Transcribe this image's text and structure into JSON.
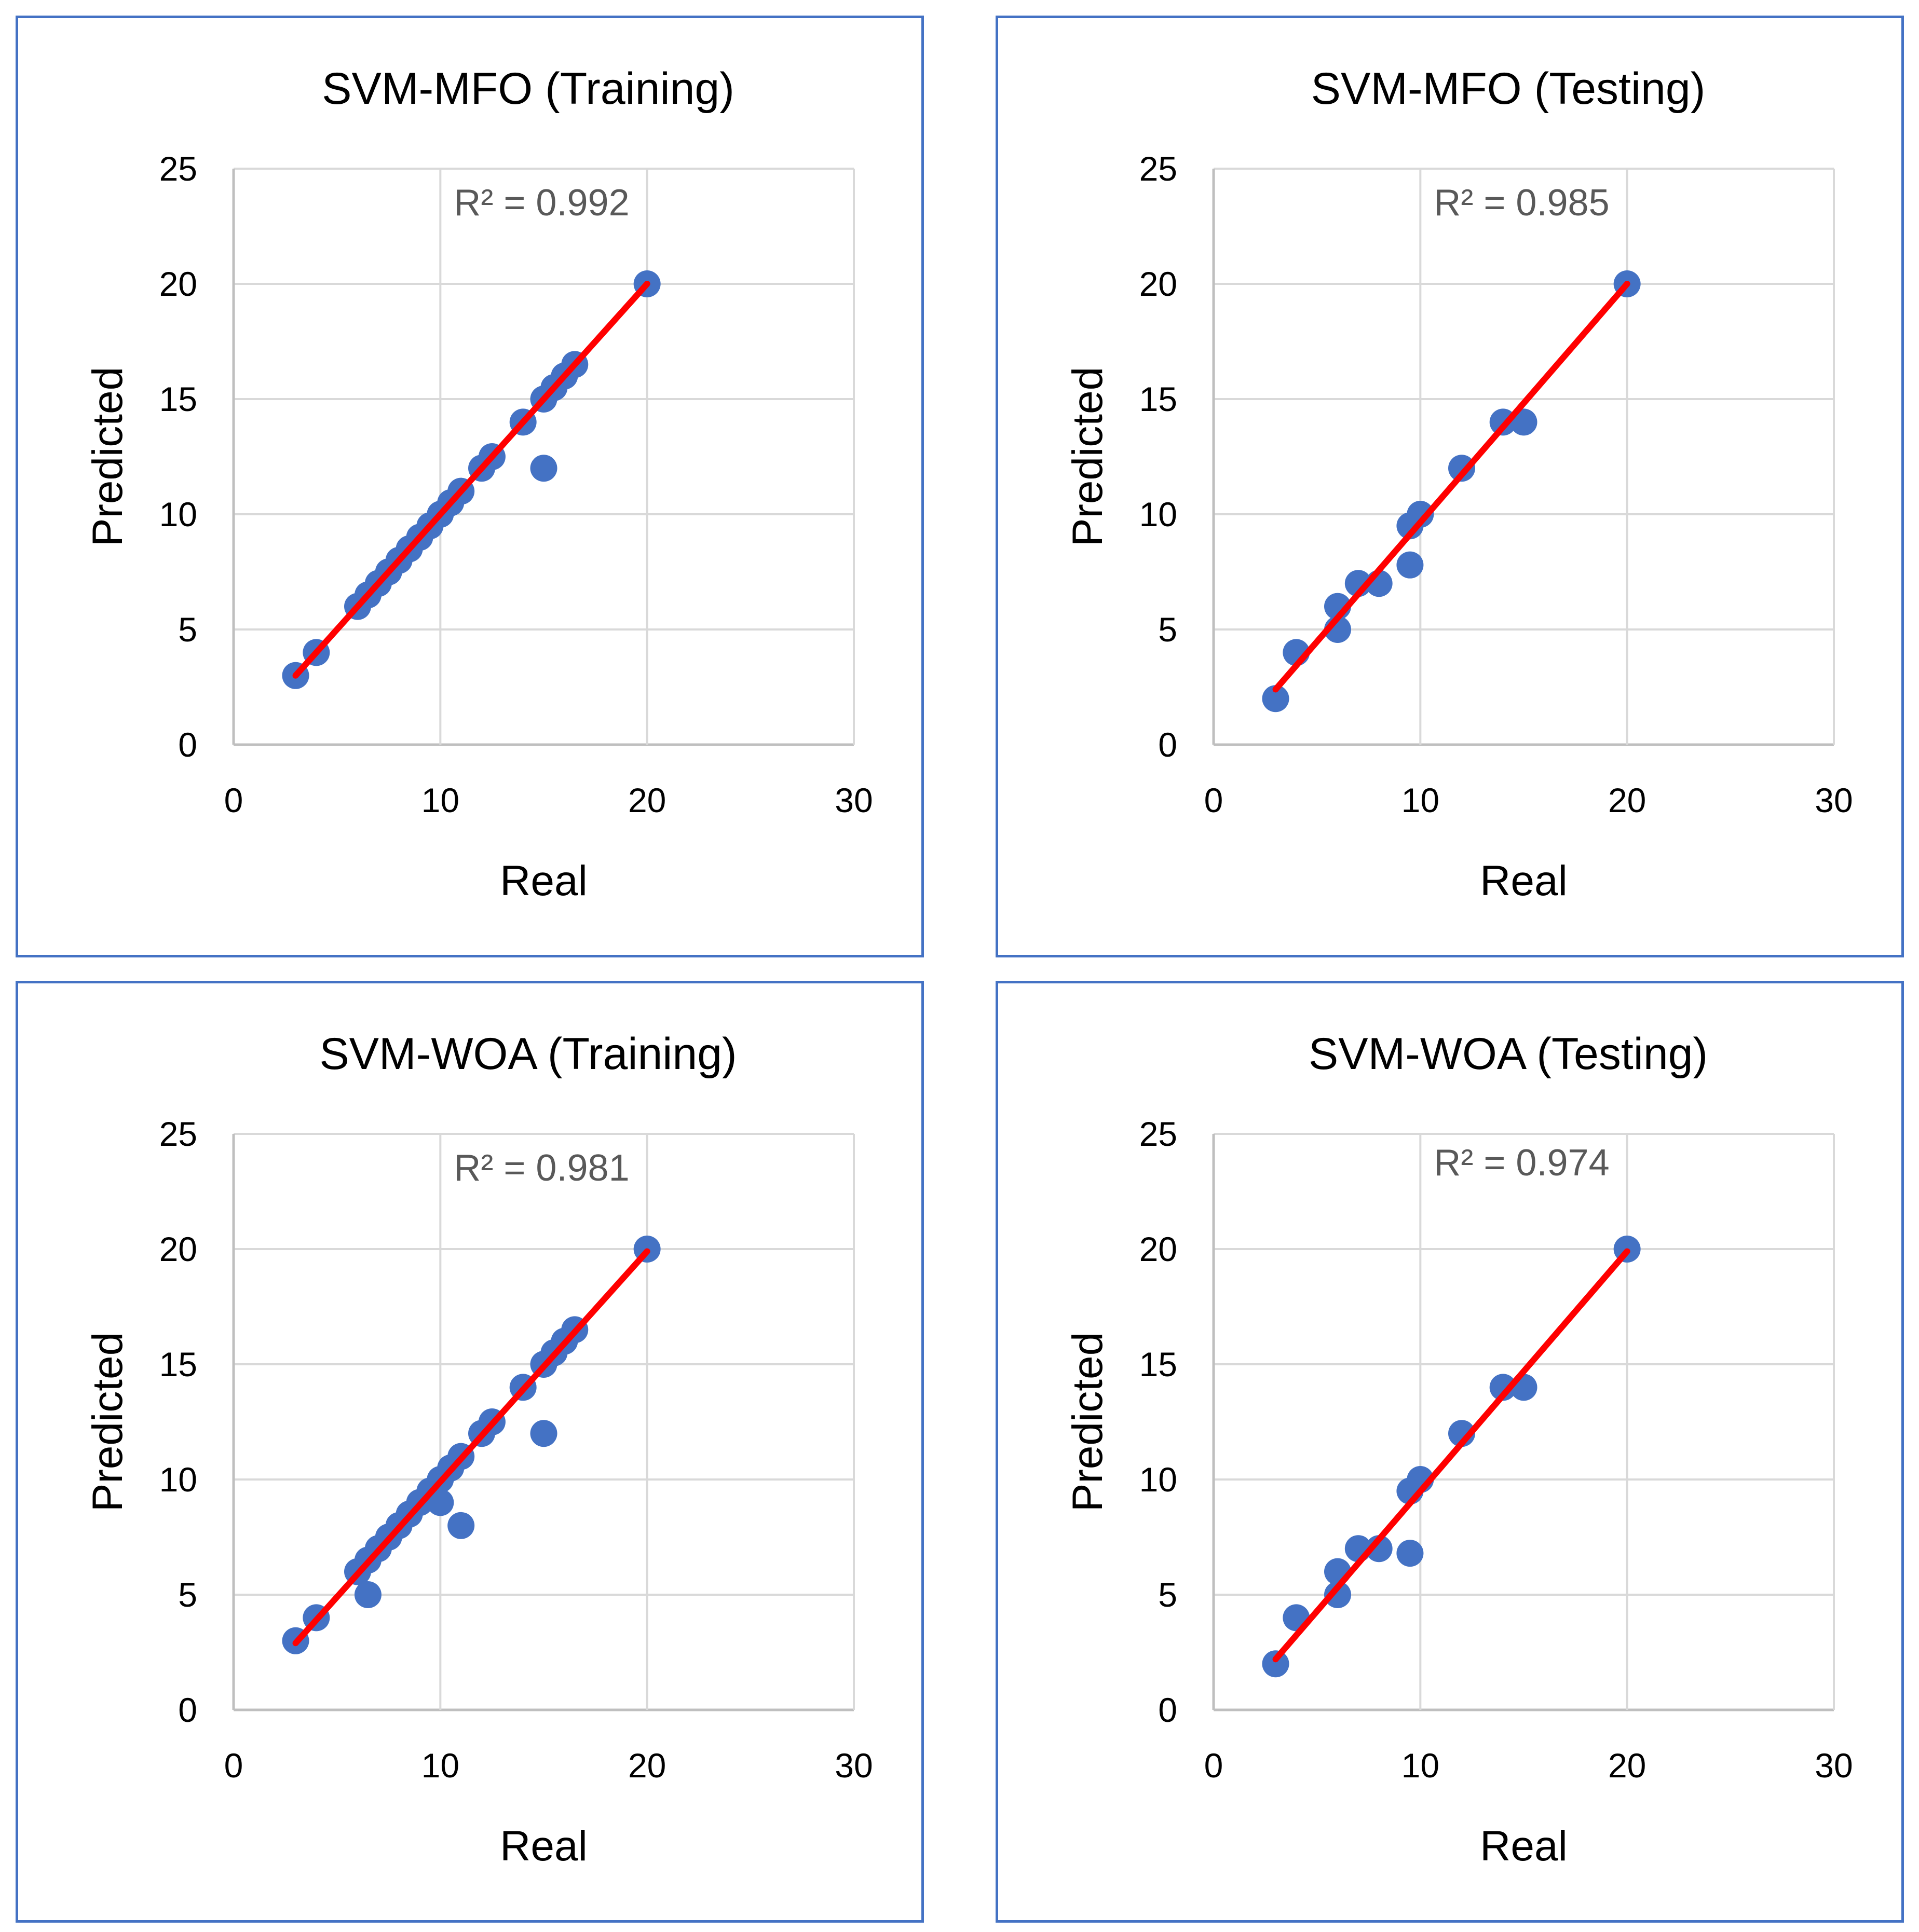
{
  "chart_data": [
    {
      "type": "scatter",
      "title": "SVM-MFO (Training)",
      "xlabel": "Real",
      "ylabel": "Predicted",
      "xlim": [
        0,
        30
      ],
      "ylim": [
        0,
        25
      ],
      "xticks": [
        "0",
        "10",
        "20",
        "30"
      ],
      "yticks": [
        "0",
        "5",
        "10",
        "15",
        "20",
        "25"
      ],
      "r2_label": "R² = 0.992",
      "trendline": {
        "x": [
          3,
          20
        ],
        "y": [
          3,
          20
        ],
        "color": "#FF0000"
      },
      "series": [
        {
          "name": "Predicted",
          "color": "#4472C4",
          "x": [
            3,
            4,
            6,
            6.5,
            7,
            7.5,
            8,
            8.5,
            9,
            9.5,
            10,
            10.5,
            11,
            12,
            12.5,
            14,
            15,
            15.5,
            16,
            16.5,
            20,
            15
          ],
          "y": [
            3,
            4,
            6,
            6.5,
            7,
            7.5,
            8,
            8.5,
            9,
            9.5,
            10,
            10.5,
            11,
            12,
            12.5,
            14,
            15,
            15.5,
            16,
            16.5,
            20,
            12
          ]
        }
      ]
    },
    {
      "type": "scatter",
      "title": "SVM-MFO (Testing)",
      "xlabel": "Real",
      "ylabel": "Predicted",
      "xlim": [
        0,
        30
      ],
      "ylim": [
        0,
        25
      ],
      "xticks": [
        "0",
        "10",
        "20",
        "30"
      ],
      "yticks": [
        "0",
        "5",
        "10",
        "15",
        "20",
        "25"
      ],
      "r2_label": "R² = 0.985",
      "trendline": {
        "x": [
          3,
          20
        ],
        "y": [
          2.4,
          20
        ],
        "color": "#FF0000"
      },
      "series": [
        {
          "name": "Predicted",
          "color": "#4472C4",
          "x": [
            3,
            4,
            6,
            6,
            7,
            8,
            9.5,
            9.5,
            10,
            12,
            14,
            15,
            20
          ],
          "y": [
            2,
            4,
            6,
            5,
            7,
            7,
            9.5,
            7.8,
            10,
            12,
            14,
            14,
            20
          ]
        }
      ]
    },
    {
      "type": "scatter",
      "title": "SVM-WOA (Training)",
      "xlabel": "Real",
      "ylabel": "Predicted",
      "xlim": [
        0,
        30
      ],
      "ylim": [
        0,
        25
      ],
      "xticks": [
        "0",
        "10",
        "20",
        "30"
      ],
      "yticks": [
        "0",
        "5",
        "10",
        "15",
        "20",
        "25"
      ],
      "r2_label": "R² = 0.981",
      "trendline": {
        "x": [
          3,
          20
        ],
        "y": [
          2.9,
          19.9
        ],
        "color": "#FF0000"
      },
      "series": [
        {
          "name": "Predicted",
          "color": "#4472C4",
          "x": [
            3,
            4,
            6,
            6.5,
            7,
            7.5,
            8,
            8.5,
            9,
            9.5,
            10,
            10.5,
            11,
            12,
            12.5,
            14,
            15,
            15.5,
            16,
            16.5,
            20,
            15,
            11,
            10,
            6.5
          ],
          "y": [
            3,
            4,
            6,
            6.5,
            7,
            7.5,
            8,
            8.5,
            9,
            9.5,
            10,
            10.5,
            11,
            12,
            12.5,
            14,
            15,
            15.5,
            16,
            16.5,
            20,
            12,
            8,
            9,
            5
          ]
        }
      ]
    },
    {
      "type": "scatter",
      "title": "SVM-WOA (Testing)",
      "xlabel": "Real",
      "ylabel": "Predicted",
      "xlim": [
        0,
        30
      ],
      "ylim": [
        0,
        25
      ],
      "xticks": [
        "0",
        "10",
        "20",
        "30"
      ],
      "yticks": [
        "0",
        "5",
        "10",
        "15",
        "20",
        "25"
      ],
      "r2_label": "R² = 0.974",
      "trendline": {
        "x": [
          3,
          20
        ],
        "y": [
          2.2,
          19.9
        ],
        "color": "#FF0000"
      },
      "series": [
        {
          "name": "Predicted",
          "color": "#4472C4",
          "x": [
            3,
            4,
            6,
            6,
            7,
            8,
            9.5,
            9.5,
            10,
            12,
            14,
            15,
            20
          ],
          "y": [
            2,
            4,
            6,
            5,
            7,
            7,
            9.5,
            6.8,
            10,
            12,
            14,
            14,
            20
          ]
        }
      ]
    }
  ]
}
